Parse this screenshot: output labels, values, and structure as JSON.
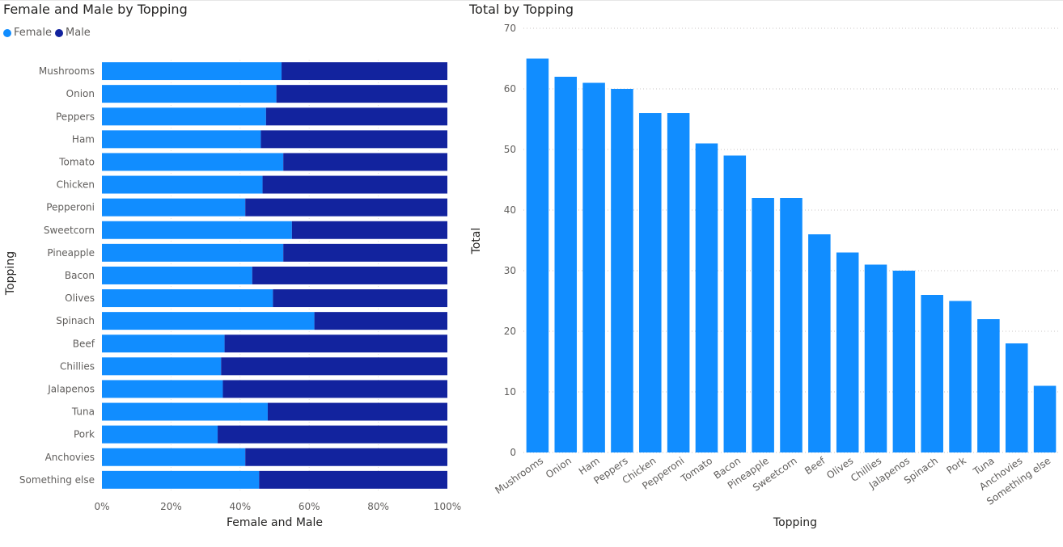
{
  "chart_data": [
    {
      "type": "bar",
      "orientation": "horizontal",
      "stacked": "100%",
      "title": "Female and Male by Topping",
      "xlabel": "Female and Male",
      "ylabel": "Topping",
      "xlim": [
        0,
        100
      ],
      "x_ticks": [
        "0%",
        "20%",
        "40%",
        "60%",
        "80%",
        "100%"
      ],
      "legend_position": "top-left",
      "categories": [
        "Mushrooms",
        "Onion",
        "Peppers",
        "Ham",
        "Tomato",
        "Chicken",
        "Pepperoni",
        "Sweetcorn",
        "Pineapple",
        "Bacon",
        "Olives",
        "Spinach",
        "Beef",
        "Chillies",
        "Jalapenos",
        "Tuna",
        "Pork",
        "Anchovies",
        "Something else"
      ],
      "series": [
        {
          "name": "Female",
          "color": "#118dff",
          "values": [
            52,
            50.5,
            47.5,
            46,
            52.5,
            46.5,
            41.5,
            55,
            52.5,
            43.5,
            49.5,
            61.5,
            35.5,
            34.5,
            35,
            48,
            33.5,
            41.5,
            45.5
          ]
        },
        {
          "name": "Male",
          "color": "#12239e",
          "values": [
            48,
            49.5,
            52.5,
            54,
            47.5,
            53.5,
            58.5,
            45,
            47.5,
            56.5,
            50.5,
            38.5,
            64.5,
            65.5,
            65,
            52,
            66.5,
            58.5,
            54.5
          ]
        }
      ]
    },
    {
      "type": "bar",
      "orientation": "vertical",
      "title": "Total by Topping",
      "xlabel": "Topping",
      "ylabel": "Total",
      "ylim": [
        0,
        70
      ],
      "y_ticks": [
        0,
        10,
        20,
        30,
        40,
        50,
        60,
        70
      ],
      "grid": true,
      "color": "#118dff",
      "categories": [
        "Mushrooms",
        "Onion",
        "Ham",
        "Peppers",
        "Chicken",
        "Pepperoni",
        "Tomato",
        "Bacon",
        "Pineapple",
        "Sweetcorn",
        "Beef",
        "Olives",
        "Chillies",
        "Jalapenos",
        "Spinach",
        "Pork",
        "Tuna",
        "Anchovies",
        "Something else"
      ],
      "values": [
        65,
        62,
        61,
        60,
        56,
        56,
        51,
        49,
        42,
        42,
        36,
        33,
        31,
        30,
        26,
        25,
        22,
        18,
        11
      ]
    }
  ],
  "colors": {
    "female": "#118dff",
    "male": "#12239e",
    "total": "#118dff",
    "axis_text": "#605e5c",
    "title_text": "#252423",
    "grid": "#c8c6c4"
  }
}
